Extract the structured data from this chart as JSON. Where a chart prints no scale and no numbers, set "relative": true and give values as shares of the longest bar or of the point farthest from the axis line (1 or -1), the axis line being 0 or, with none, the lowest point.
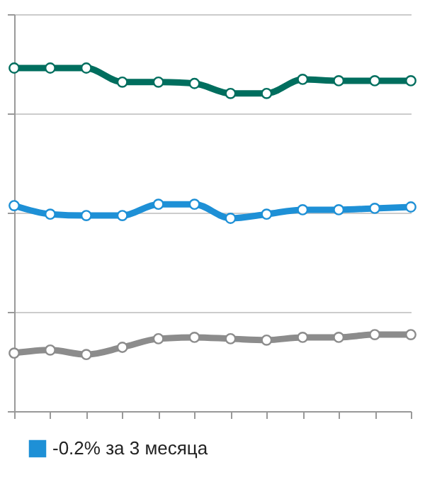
{
  "chart_data": {
    "type": "line",
    "relative": true,
    "categories": [
      null,
      null,
      null,
      null,
      null,
      null,
      null,
      null,
      null,
      null,
      null,
      null
    ],
    "series": [
      {
        "color": "#006e5e",
        "values": [
          1,
          1,
          1,
          0.959,
          0.959,
          0.955,
          0.926,
          0.926,
          0.967,
          0.963,
          0.963,
          0.963
        ]
      },
      {
        "name": "-0.2% за 3 месяца",
        "color": "#1e90d6",
        "values": [
          0.599,
          0.574,
          0.57,
          0.57,
          0.603,
          0.603,
          0.562,
          0.574,
          0.587,
          0.587,
          0.591,
          0.595
        ]
      },
      {
        "color": "#8c8c8c",
        "values": [
          0.169,
          0.178,
          0.165,
          0.186,
          0.211,
          0.215,
          0.211,
          0.207,
          0.215,
          0.215,
          0.223,
          0.223
        ]
      }
    ],
    "marker": "circle",
    "line_style": "solid",
    "grid": "y",
    "legend": "bottom left"
  }
}
